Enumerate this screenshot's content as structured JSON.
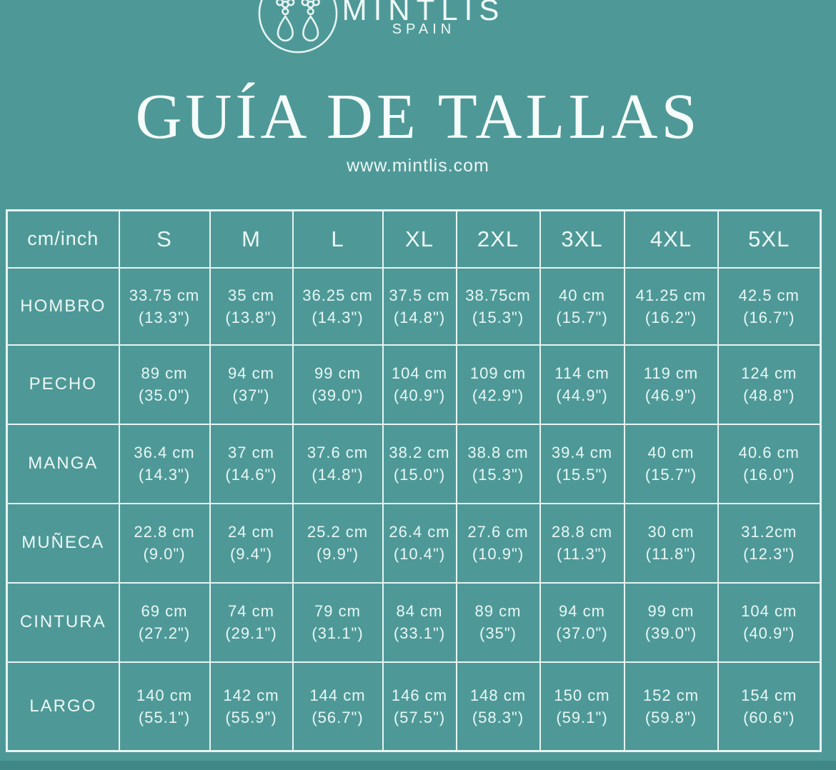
{
  "brand": {
    "name": "MINTLIS",
    "country": "SPAIN"
  },
  "title": "GUÍA DE TALLAS",
  "website": "www.mintlis.com",
  "colors": {
    "background": "#4E9998",
    "grid_line": "#E7F4F1",
    "text": "#F0FAF7",
    "bottom_strip": "#3F8887"
  },
  "table": {
    "unit_header": "cm/inch",
    "sizes": [
      "S",
      "M",
      "L",
      "XL",
      "2XL",
      "3XL",
      "4XL",
      "5XL"
    ],
    "rows": [
      {
        "label": "HOMBRO",
        "values": [
          [
            "33.75 cm",
            "(13.3\")"
          ],
          [
            "35 cm",
            "(13.8\")"
          ],
          [
            "36.25 cm",
            "(14.3\")"
          ],
          [
            "37.5 cm",
            "(14.8\")"
          ],
          [
            "38.75cm",
            "(15.3\")"
          ],
          [
            "40 cm",
            "(15.7\")"
          ],
          [
            "41.25 cm",
            "(16.2\")"
          ],
          [
            "42.5 cm",
            "(16.7\")"
          ]
        ]
      },
      {
        "label": "PECHO",
        "values": [
          [
            "89 cm",
            "(35.0\")"
          ],
          [
            "94 cm",
            "(37\")"
          ],
          [
            "99 cm",
            "(39.0\")"
          ],
          [
            "104 cm",
            "(40.9\")"
          ],
          [
            "109 cm",
            "(42.9\")"
          ],
          [
            "114 cm",
            "(44.9\")"
          ],
          [
            "119 cm",
            "(46.9\")"
          ],
          [
            "124 cm",
            "(48.8\")"
          ]
        ]
      },
      {
        "label": "MANGA",
        "values": [
          [
            "36.4 cm",
            "(14.3\")"
          ],
          [
            "37 cm",
            "(14.6\")"
          ],
          [
            "37.6 cm",
            "(14.8\")"
          ],
          [
            "38.2 cm",
            "(15.0\")"
          ],
          [
            "38.8 cm",
            "(15.3\")"
          ],
          [
            "39.4 cm",
            "(15.5\")"
          ],
          [
            "40 cm",
            "(15.7\")"
          ],
          [
            "40.6 cm",
            "(16.0\")"
          ]
        ]
      },
      {
        "label": "MUÑECA",
        "values": [
          [
            "22.8 cm",
            "(9.0\")"
          ],
          [
            "24 cm",
            "(9.4\")"
          ],
          [
            "25.2 cm",
            "(9.9\")"
          ],
          [
            "26.4 cm",
            "(10.4\")"
          ],
          [
            "27.6 cm",
            "(10.9\")"
          ],
          [
            "28.8 cm",
            "(11.3\")"
          ],
          [
            "30 cm",
            "(11.8\")"
          ],
          [
            "31.2cm",
            "(12.3\")"
          ]
        ]
      },
      {
        "label": "CINTURA",
        "values": [
          [
            "69 cm",
            "(27.2\")"
          ],
          [
            "74 cm",
            "(29.1\")"
          ],
          [
            "79 cm",
            "(31.1\")"
          ],
          [
            "84 cm",
            "(33.1\")"
          ],
          [
            "89 cm",
            "(35\")"
          ],
          [
            "94 cm",
            "(37.0\")"
          ],
          [
            "99 cm",
            "(39.0\")"
          ],
          [
            "104 cm",
            "(40.9\")"
          ]
        ]
      },
      {
        "label": "LARGO",
        "values": [
          [
            "140 cm",
            "(55.1\")"
          ],
          [
            "142 cm",
            "(55.9\")"
          ],
          [
            "144 cm",
            "(56.7\")"
          ],
          [
            "146 cm",
            "(57.5\")"
          ],
          [
            "148 cm",
            "(58.3\")"
          ],
          [
            "150 cm",
            "(59.1\")"
          ],
          [
            "152 cm",
            "(59.8\")"
          ],
          [
            "154 cm",
            "(60.6\")"
          ]
        ]
      }
    ]
  }
}
